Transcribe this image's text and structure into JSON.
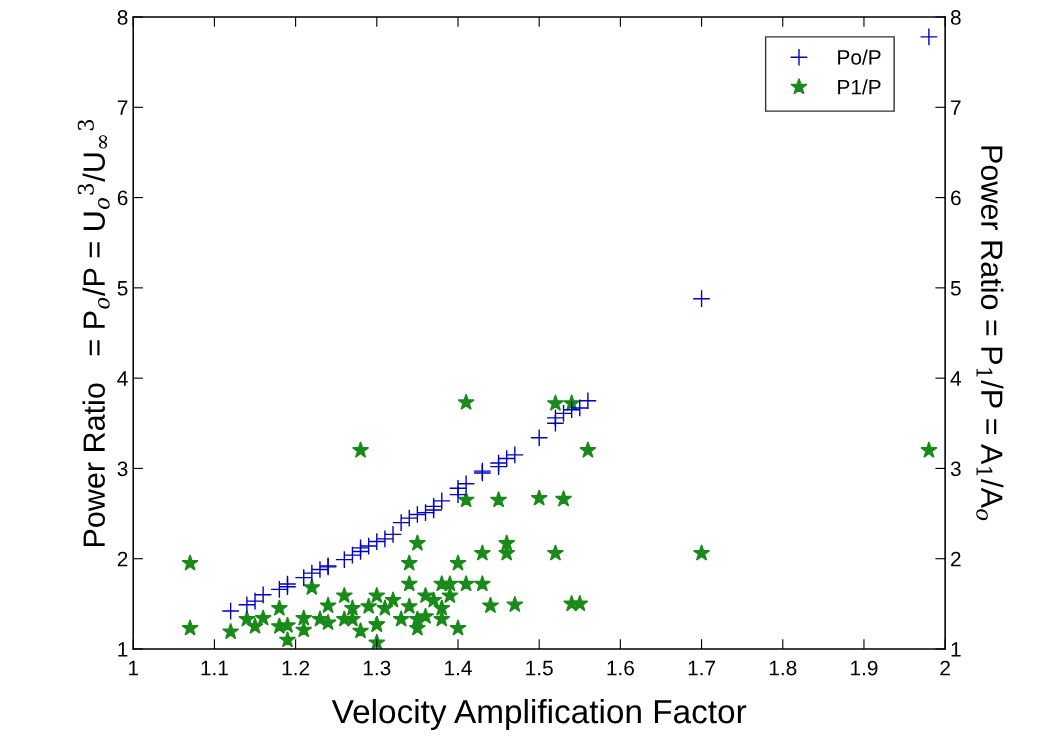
{
  "chart_data": {
    "type": "scatter",
    "xlabel": "Velocity Amplification Factor",
    "ylabel": "Power Ratio   = P$_{o}$/P = U$_{o}$$^{3}$/U$_{∞}$$^{3}$",
    "y2label": "Power Ratio = P$_{1}$/P = A$_{1}$/A$_{o}$",
    "xlim": [
      1,
      2
    ],
    "xticks": [
      1,
      1.1,
      1.2,
      1.3,
      1.4,
      1.5,
      1.6,
      1.7,
      1.8,
      1.9,
      2
    ],
    "ylim": [
      1,
      8
    ],
    "yticks": [
      1,
      2,
      3,
      4,
      5,
      6,
      7,
      8
    ],
    "y2lim": [
      1,
      8
    ],
    "y2ticks": [
      1,
      2,
      3,
      4,
      5,
      6,
      7,
      8
    ],
    "grid": false,
    "legend": "top right",
    "series": [
      {
        "name": "Po/P",
        "color": "#0000c0",
        "marker": "cross",
        "x": [
          1.12,
          1.14,
          1.15,
          1.16,
          1.18,
          1.19,
          1.19,
          1.21,
          1.22,
          1.23,
          1.24,
          1.24,
          1.26,
          1.27,
          1.28,
          1.28,
          1.29,
          1.3,
          1.31,
          1.32,
          1.33,
          1.34,
          1.35,
          1.36,
          1.37,
          1.37,
          1.38,
          1.4,
          1.4,
          1.41,
          1.43,
          1.43,
          1.45,
          1.45,
          1.46,
          1.47,
          1.5,
          1.52,
          1.52,
          1.53,
          1.54,
          1.55,
          1.56,
          1.7,
          1.98
        ],
        "values": [
          1.42,
          1.49,
          1.53,
          1.6,
          1.66,
          1.69,
          1.72,
          1.79,
          1.84,
          1.88,
          1.91,
          1.92,
          1.99,
          2.04,
          2.08,
          2.12,
          2.14,
          2.19,
          2.22,
          2.27,
          2.4,
          2.45,
          2.49,
          2.51,
          2.54,
          2.58,
          2.64,
          2.71,
          2.78,
          2.83,
          2.95,
          2.97,
          3.02,
          3.06,
          3.11,
          3.15,
          3.34,
          3.5,
          3.56,
          3.61,
          3.65,
          3.67,
          3.75,
          4.88,
          7.78
        ]
      },
      {
        "name": "P1/P",
        "color": "#1a8a1a",
        "marker": "star",
        "axis": "y2",
        "x": [
          1.07,
          1.07,
          1.12,
          1.14,
          1.15,
          1.16,
          1.18,
          1.18,
          1.19,
          1.19,
          1.21,
          1.21,
          1.22,
          1.23,
          1.24,
          1.24,
          1.26,
          1.26,
          1.27,
          1.27,
          1.28,
          1.28,
          1.29,
          1.3,
          1.3,
          1.3,
          1.3,
          1.31,
          1.32,
          1.33,
          1.34,
          1.34,
          1.34,
          1.35,
          1.35,
          1.35,
          1.36,
          1.36,
          1.37,
          1.38,
          1.38,
          1.38,
          1.39,
          1.39,
          1.4,
          1.4,
          1.41,
          1.41,
          1.41,
          1.43,
          1.43,
          1.44,
          1.45,
          1.46,
          1.46,
          1.47,
          1.5,
          1.52,
          1.54,
          1.56,
          1.53,
          1.52,
          1.7,
          1.54,
          1.55,
          1.98
        ],
        "values": [
          1.95,
          1.23,
          1.19,
          1.33,
          1.25,
          1.34,
          1.45,
          1.25,
          1.26,
          1.1,
          1.34,
          1.21,
          1.68,
          1.33,
          1.48,
          1.29,
          1.59,
          1.33,
          1.45,
          1.33,
          3.2,
          1.2,
          1.47,
          1.59,
          1.27,
          1.27,
          1.07,
          1.45,
          1.54,
          1.33,
          1.95,
          1.72,
          1.47,
          2.17,
          1.33,
          1.23,
          1.59,
          1.36,
          1.54,
          1.45,
          1.33,
          1.72,
          1.72,
          1.59,
          1.95,
          1.23,
          3.73,
          2.65,
          1.72,
          2.06,
          1.72,
          1.48,
          2.65,
          2.17,
          2.06,
          1.49,
          2.67,
          3.72,
          3.72,
          3.2,
          2.66,
          2.06,
          2.06,
          1.5,
          1.5,
          3.2
        ]
      }
    ]
  }
}
